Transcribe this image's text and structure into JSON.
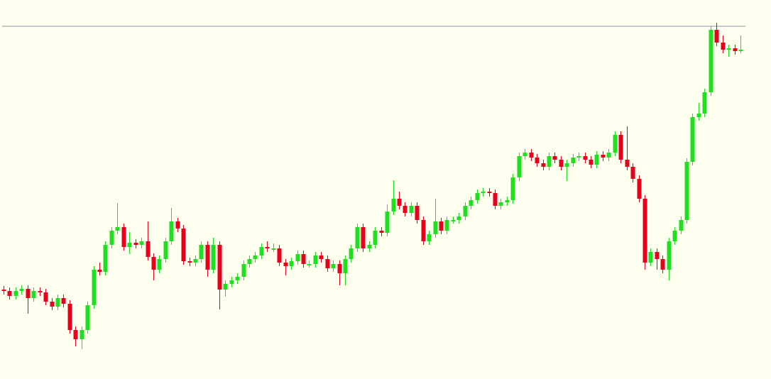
{
  "chart_data": {
    "type": "candlestick",
    "up_color": "#1ee01e",
    "down_color": "#e8001c",
    "ylim": [
      0,
      534
    ],
    "hline": {
      "value": 497,
      "color": "#8494a8"
    },
    "open": [
      126,
      124,
      117,
      124,
      127,
      114,
      124,
      122,
      109,
      102,
      114,
      106,
      69,
      56,
      69,
      104,
      154,
      151,
      189,
      209,
      214,
      186,
      192,
      189,
      194,
      172,
      154,
      169,
      194,
      222,
      212,
      166,
      164,
      169,
      189,
      154,
      189,
      126,
      134,
      139,
      144,
      162,
      169,
      174,
      186,
      184,
      184,
      164,
      159,
      166,
      176,
      162,
      162,
      174,
      169,
      156,
      162,
      149,
      169,
      184,
      214,
      184,
      189,
      209,
      206,
      236,
      254,
      244,
      234,
      244,
      224,
      194,
      204,
      222,
      209,
      224,
      224,
      229,
      244,
      252,
      262,
      264,
      262,
      244,
      249,
      252,
      284,
      314,
      319,
      312,
      304,
      299,
      314,
      309,
      299,
      304,
      312,
      314,
      309,
      302,
      316,
      312,
      319,
      344,
      309,
      299,
      282,
      254,
      164,
      179,
      169,
      154,
      194,
      209,
      224,
      306,
      369,
      374,
      404,
      492,
      474,
      464,
      466,
      462
    ],
    "high": [
      131,
      129,
      129,
      132,
      132,
      129,
      129,
      127,
      114,
      119,
      119,
      111,
      74,
      74,
      109,
      159,
      164,
      194,
      214,
      248,
      219,
      207,
      197,
      199,
      222,
      177,
      174,
      199,
      241,
      227,
      217,
      171,
      174,
      194,
      194,
      199,
      194,
      139,
      144,
      149,
      167,
      174,
      179,
      191,
      194,
      191,
      189,
      169,
      171,
      181,
      181,
      167,
      179,
      179,
      174,
      167,
      167,
      174,
      189,
      219,
      219,
      194,
      214,
      214,
      246,
      280,
      264,
      249,
      249,
      249,
      229,
      209,
      254,
      227,
      229,
      229,
      234,
      249,
      257,
      267,
      269,
      269,
      267,
      254,
      257,
      289,
      319,
      324,
      324,
      317,
      309,
      319,
      319,
      314,
      309,
      317,
      319,
      319,
      314,
      321,
      321,
      324,
      349,
      349,
      356,
      304,
      287,
      259,
      184,
      184,
      174,
      199,
      214,
      229,
      311,
      374,
      389,
      409,
      497,
      502,
      484,
      471,
      471,
      484
    ],
    "low": [
      119,
      112,
      112,
      119,
      92,
      109,
      117,
      104,
      97,
      97,
      101,
      64,
      46,
      42,
      64,
      99,
      146,
      146,
      184,
      204,
      181,
      176,
      184,
      184,
      167,
      139,
      149,
      164,
      189,
      207,
      161,
      159,
      159,
      164,
      144,
      149,
      98,
      116,
      129,
      134,
      139,
      157,
      164,
      169,
      179,
      179,
      159,
      146,
      154,
      161,
      157,
      157,
      157,
      164,
      151,
      151,
      132,
      132,
      164,
      179,
      179,
      179,
      184,
      201,
      201,
      231,
      239,
      229,
      229,
      219,
      189,
      189,
      199,
      204,
      204,
      219,
      219,
      224,
      239,
      247,
      257,
      257,
      239,
      239,
      244,
      247,
      279,
      309,
      307,
      299,
      294,
      294,
      304,
      294,
      279,
      299,
      307,
      304,
      297,
      297,
      307,
      307,
      314,
      304,
      294,
      277,
      249,
      154,
      159,
      154,
      149,
      139,
      189,
      204,
      219,
      301,
      364,
      369,
      399,
      469,
      459,
      454,
      457,
      459
    ],
    "close": [
      124,
      117,
      124,
      127,
      114,
      124,
      122,
      109,
      102,
      114,
      106,
      69,
      56,
      69,
      104,
      154,
      151,
      189,
      209,
      214,
      186,
      192,
      189,
      194,
      172,
      154,
      169,
      194,
      222,
      212,
      166,
      164,
      169,
      189,
      154,
      189,
      126,
      134,
      139,
      144,
      162,
      169,
      174,
      186,
      184,
      184,
      164,
      159,
      166,
      176,
      162,
      162,
      174,
      169,
      156,
      162,
      149,
      169,
      184,
      214,
      184,
      189,
      209,
      206,
      236,
      254,
      244,
      234,
      244,
      224,
      194,
      204,
      222,
      209,
      224,
      224,
      229,
      244,
      252,
      262,
      264,
      262,
      244,
      249,
      252,
      284,
      314,
      319,
      312,
      304,
      299,
      314,
      309,
      299,
      304,
      312,
      314,
      309,
      302,
      316,
      312,
      319,
      344,
      309,
      299,
      282,
      254,
      164,
      179,
      169,
      154,
      194,
      209,
      224,
      306,
      369,
      374,
      404,
      492,
      474,
      464,
      466,
      462,
      464
    ]
  }
}
